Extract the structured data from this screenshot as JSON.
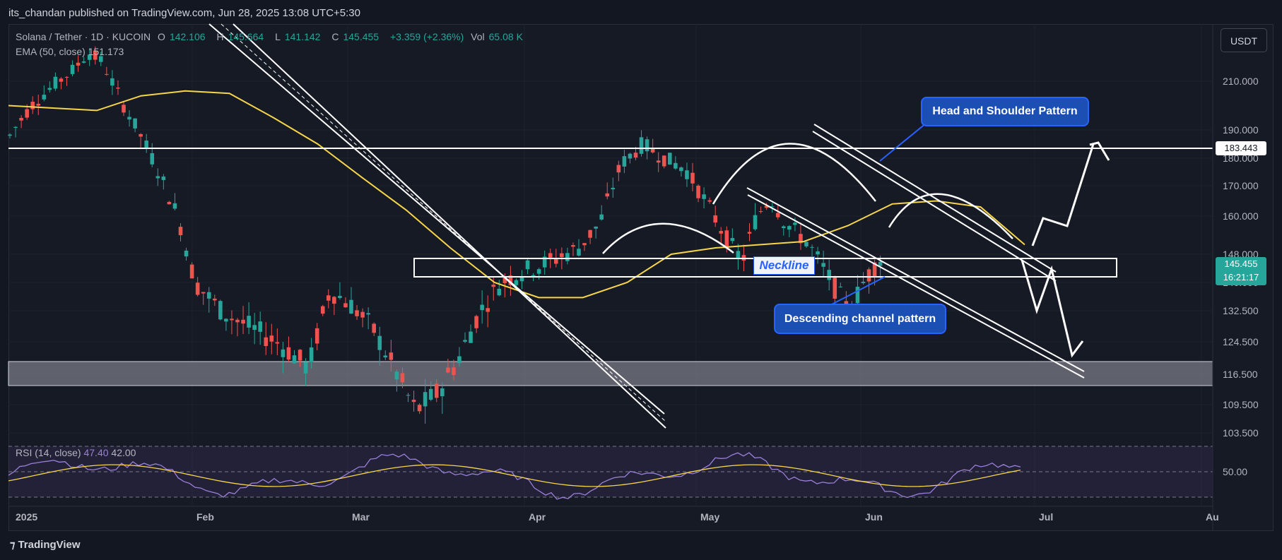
{
  "header": {
    "publish_line": "its_chandan published on TradingView.com, Jun 28, 2025 13:08 UTC+5:30"
  },
  "legend": {
    "symbol": "Solana / Tether · 1D · KUCOIN",
    "open_label": "O",
    "open": "142.106",
    "high_label": "H",
    "high": "145.664",
    "low_label": "L",
    "low": "141.142",
    "close_label": "C",
    "close": "145.455",
    "change": "+3.359 (+2.36%)",
    "vol_label": "Vol",
    "vol": "65.08 K",
    "ema_label": "EMA (50, close)",
    "ema_value": "151.173",
    "rsi_label": "RSI (14, close)",
    "rsi_value": "47.40",
    "rsi_ma": "42.00"
  },
  "toolbar": {
    "currency_button": "USDT"
  },
  "tags": {
    "horizontal_level": "183.443",
    "current_price": "145.455",
    "countdown": "16:21:17"
  },
  "annotations": {
    "head_shoulder": "Head and Shoulder Pattern",
    "descending_channel": "Descending channel pattern",
    "neckline": "Neckline"
  },
  "footer": {
    "brand": "TradingView"
  },
  "colors": {
    "background": "#131722",
    "up": "#26a69a",
    "down": "#ef5350",
    "ema": "#f7d54a",
    "rsi": "#9b7fd9",
    "callout": "#1b4fb3"
  },
  "chart_data": {
    "type": "candlestick",
    "title": "Solana / Tether · 1D · KUCOIN",
    "y_ticks": [
      "210.000",
      "190.000",
      "180.000",
      "170.000",
      "160.000",
      "148.000",
      "140.000",
      "132.500",
      "124.500",
      "116.500",
      "109.500",
      "103.500"
    ],
    "x_ticks": [
      "2025",
      "Feb",
      "Mar",
      "Apr",
      "May",
      "Jun",
      "Jul",
      "Au"
    ],
    "rsi_ticks": [
      "50.00"
    ],
    "ylim": [
      100,
      225
    ],
    "support_zone": [
      114,
      119
    ],
    "neckline_zone": [
      143.5,
      148.5
    ],
    "resistance_level": 183.443,
    "series": [
      {
        "name": "EMA (50, close)",
        "values": [
          200,
          199,
          198,
          204,
          206,
          205,
          195,
          185,
          173,
          162,
          150,
          140,
          136,
          136,
          140,
          148,
          150,
          151,
          152,
          157,
          164,
          165,
          163,
          151
        ]
      }
    ]
  }
}
